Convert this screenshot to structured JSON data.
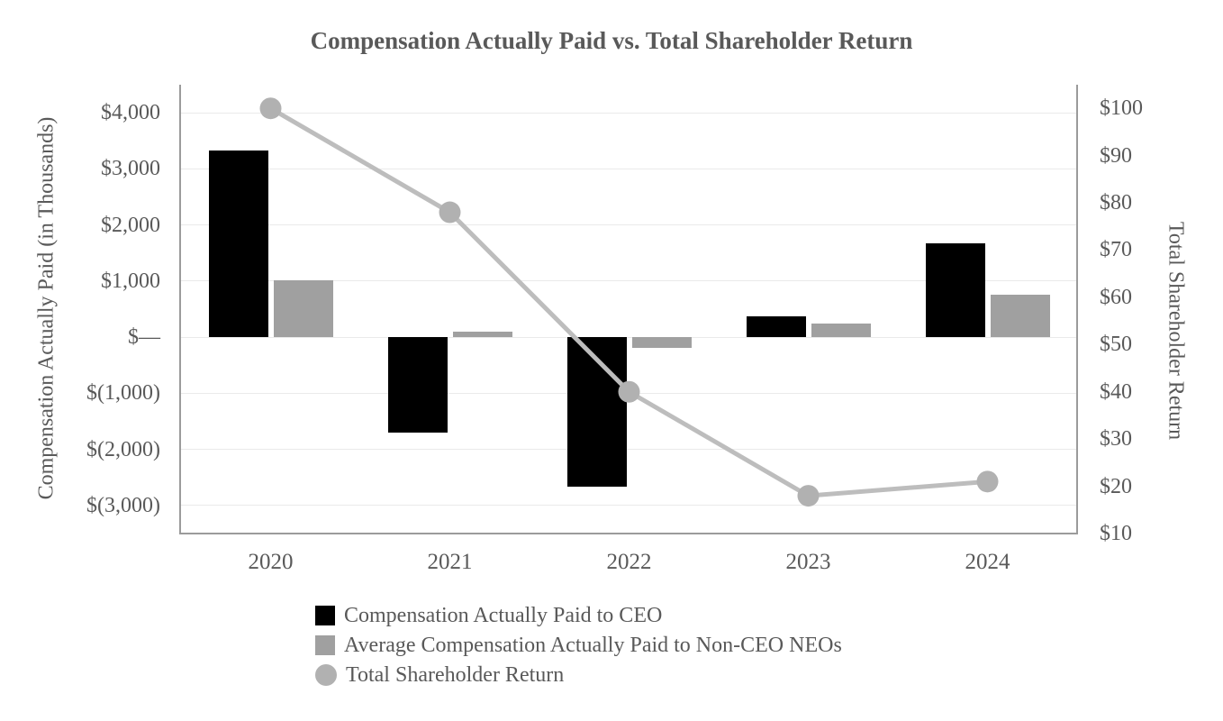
{
  "chart_data": {
    "type": "combo-bar-line",
    "title": "Compensation Actually Paid vs. Total Shareholder Return",
    "categories": [
      "2020",
      "2021",
      "2022",
      "2023",
      "2024"
    ],
    "series": [
      {
        "id": "ceo-cap",
        "name": "Compensation Actually Paid to CEO",
        "type": "bar",
        "axis": "left",
        "color": "#000000",
        "swatch": "square",
        "values": [
          3320,
          -1700,
          -2660,
          370,
          1680
        ]
      },
      {
        "id": "neo-cap",
        "name": "Average Compensation Actually Paid to Non-CEO NEOs",
        "type": "bar",
        "axis": "left",
        "color": "#a0a0a0",
        "swatch": "square",
        "values": [
          1020,
          100,
          -190,
          250,
          750
        ]
      },
      {
        "id": "tsr",
        "name": "Total Shareholder Return",
        "type": "line",
        "axis": "right",
        "color": "#bdbdbd",
        "marker_color": "#b1b1b1",
        "swatch": "circle",
        "values": [
          100,
          78,
          40,
          18,
          21
        ]
      }
    ],
    "left_axis": {
      "title": "Compensation Actually Paid (in Thousands)",
      "min": -3500,
      "max": 4500,
      "ticks": [
        {
          "value": 4000,
          "label": "$4,000"
        },
        {
          "value": 3000,
          "label": "$3,000"
        },
        {
          "value": 2000,
          "label": "$2,000"
        },
        {
          "value": 1000,
          "label": "$1,000"
        },
        {
          "value": 0,
          "label": "$—"
        },
        {
          "value": -1000,
          "label": "$(1,000)"
        },
        {
          "value": -2000,
          "label": "$(2,000)"
        },
        {
          "value": -3000,
          "label": "$(3,000)"
        }
      ]
    },
    "right_axis": {
      "title": "Total Shareholder Return",
      "min": 10,
      "max": 105,
      "ticks": [
        {
          "value": 100,
          "label": "$100"
        },
        {
          "value": 90,
          "label": "$90"
        },
        {
          "value": 80,
          "label": "$80"
        },
        {
          "value": 70,
          "label": "$70"
        },
        {
          "value": 60,
          "label": "$60"
        },
        {
          "value": 50,
          "label": "$50"
        },
        {
          "value": 40,
          "label": "$40"
        },
        {
          "value": 30,
          "label": "$30"
        },
        {
          "value": 20,
          "label": "$20"
        },
        {
          "value": 10,
          "label": "$10"
        }
      ]
    },
    "grid": true,
    "legend_position": "bottom-left"
  }
}
